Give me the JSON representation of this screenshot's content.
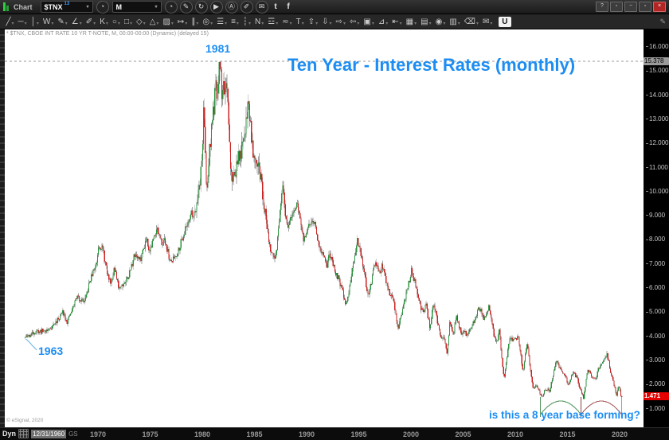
{
  "window": {
    "controls": [
      {
        "name": "help",
        "glyph": "?"
      },
      {
        "name": "pin",
        "glyph": "▫"
      },
      {
        "name": "minimize",
        "glyph": "−"
      },
      {
        "name": "restore",
        "glyph": "▫"
      },
      {
        "name": "close",
        "glyph": "×"
      }
    ]
  },
  "toolbar": {
    "app_label": "Chart",
    "symbol": {
      "value": "$TNX",
      "badge": "13"
    },
    "interval": {
      "value": "M"
    },
    "right_icons": [
      {
        "name": "time-interval-icon",
        "glyph": "◔",
        "style": "round"
      },
      {
        "name": "draw-pencil-icon",
        "glyph": "✎",
        "style": "round"
      },
      {
        "name": "refresh-icon",
        "glyph": "↻",
        "style": "round"
      },
      {
        "name": "play-icon",
        "glyph": "▶",
        "style": "round"
      },
      {
        "name": "auto-icon",
        "glyph": "Ⓐ",
        "style": "round"
      },
      {
        "name": "marker-icon",
        "glyph": "✐",
        "style": "round"
      },
      {
        "name": "comment-icon",
        "glyph": "✉",
        "style": "round"
      },
      {
        "name": "twitter-icon",
        "glyph": "t",
        "style": "flat"
      },
      {
        "name": "facebook-icon",
        "glyph": "f",
        "style": "flat"
      }
    ]
  },
  "drawing_toolbar": {
    "logo": "U",
    "panel_edit_glyph": "✎",
    "dropdown_glyph": "▾",
    "tools": [
      {
        "name": "trendline",
        "glyph": "╱"
      },
      {
        "name": "horizontal-line",
        "glyph": "─"
      },
      {
        "name": "vertical-line",
        "glyph": "│"
      },
      {
        "name": "zigzag",
        "glyph": "W"
      },
      {
        "name": "pencil",
        "glyph": "✎"
      },
      {
        "name": "angle",
        "glyph": "∠"
      },
      {
        "name": "marker",
        "glyph": "✐"
      },
      {
        "name": "gann-fan",
        "glyph": "K"
      },
      {
        "name": "ellipse",
        "glyph": "○"
      },
      {
        "name": "rectangle",
        "glyph": "□"
      },
      {
        "name": "polygon",
        "glyph": "◇"
      },
      {
        "name": "triangle",
        "glyph": "△"
      },
      {
        "name": "hatch-brush",
        "glyph": "▨"
      },
      {
        "name": "extension-line",
        "glyph": "↦"
      },
      {
        "name": "parallel-channel",
        "glyph": "∥"
      },
      {
        "name": "fib-circles",
        "glyph": "◎"
      },
      {
        "name": "fib-retracement",
        "glyph": "☰"
      },
      {
        "name": "fib-projection",
        "glyph": "≡"
      },
      {
        "name": "time-zones",
        "glyph": "┆"
      },
      {
        "name": "elliott-wave",
        "glyph": "N"
      },
      {
        "name": "price-levels",
        "glyph": "☲"
      },
      {
        "name": "strike-line",
        "glyph": "≂"
      },
      {
        "name": "text",
        "glyph": "T"
      },
      {
        "name": "arrow-up",
        "glyph": "⇧"
      },
      {
        "name": "arrow-down",
        "glyph": "⇩"
      },
      {
        "name": "arrow-right",
        "glyph": "⇨"
      },
      {
        "name": "arrow-left",
        "glyph": "⇦"
      },
      {
        "name": "callout",
        "glyph": "▣"
      },
      {
        "name": "measure",
        "glyph": "⊿"
      },
      {
        "name": "regression",
        "glyph": "⇤"
      },
      {
        "name": "grid",
        "glyph": "▦"
      },
      {
        "name": "ohlc-table",
        "glyph": "▤"
      },
      {
        "name": "bullseye",
        "glyph": "◉"
      },
      {
        "name": "panel",
        "glyph": "▥"
      },
      {
        "name": "eraser",
        "glyph": "⌫"
      },
      {
        "name": "note",
        "glyph": "✉"
      }
    ]
  },
  "chart": {
    "info_line": "* $TNX, CBOE INT RATE 10 YR T-NOTE, M, 00:00-00:00 (Dynamic) (delayed 15)",
    "watermark": "© eSignal, 2020",
    "annotations": {
      "peak_year": "1981",
      "start_year": "1963",
      "title": "Ten Year - Interest Rates (monthly)",
      "question": "is this a 8 year base forming?"
    },
    "status_bar": {
      "mode": "Dyn",
      "start_date": "12/31/1960",
      "suffix": "GS"
    }
  },
  "colors": {
    "candle_up": "#2c9440",
    "candle_down": "#cc2222",
    "wick": "#a2a2a2",
    "annotation_blue": "#1c8df2",
    "pointer_blue": "#8bc4f0",
    "high_line": "#999999",
    "high_label_bg": "#9a9a9a",
    "last_label_bg": "#e60000",
    "axis_bg": "#000000",
    "chart_bg": "#ffffff"
  },
  "chart_data": {
    "type": "candlestick",
    "symbol": "$TNX",
    "description": "CBOE INT RATE 10 YR T-NOTE",
    "interval": "Monthly",
    "title": "Ten Year - Interest Rates (monthly)",
    "ylim": [
      0.8,
      16.6
    ],
    "x_range_years": [
      1963.0,
      2020.2
    ],
    "grid": false,
    "y_ticks": [
      {
        "value": 16,
        "label": "16.000"
      },
      {
        "value": 15,
        "label": "15.000"
      },
      {
        "value": 14,
        "label": "14.000"
      },
      {
        "value": 13,
        "label": "13.000"
      },
      {
        "value": 12,
        "label": "12.000"
      },
      {
        "value": 11,
        "label": "11.000"
      },
      {
        "value": 10,
        "label": "10.000"
      },
      {
        "value": 9,
        "label": "9.000"
      },
      {
        "value": 8,
        "label": "8.000"
      },
      {
        "value": 7,
        "label": "7.000"
      },
      {
        "value": 6,
        "label": "6.000"
      },
      {
        "value": 5,
        "label": "5.000"
      },
      {
        "value": 4,
        "label": "4.000"
      },
      {
        "value": 3,
        "label": "3.000"
      },
      {
        "value": 2,
        "label": "2.000"
      },
      {
        "value": 1,
        "label": "1.000"
      }
    ],
    "x_ticks": [
      {
        "value": 1970,
        "label": "1970"
      },
      {
        "value": 1975,
        "label": "1975"
      },
      {
        "value": 1980,
        "label": "1980"
      },
      {
        "value": 1985,
        "label": "1985"
      },
      {
        "value": 1990,
        "label": "1990"
      },
      {
        "value": 1995,
        "label": "1995"
      },
      {
        "value": 2000,
        "label": "2000"
      },
      {
        "value": 2005,
        "label": "2005"
      },
      {
        "value": 2010,
        "label": "2010"
      },
      {
        "value": 2015,
        "label": "2015"
      },
      {
        "value": 2020,
        "label": "2020"
      }
    ],
    "high_marker": {
      "value": 15.378,
      "label": "15.378"
    },
    "last_trade": {
      "value": 1.471,
      "label": "1.471"
    },
    "base_arcs": [
      {
        "from_year": 2012.4,
        "to_year": 2016.3,
        "color": "#55985f"
      },
      {
        "from_year": 2016.3,
        "to_year": 2020.2,
        "color": "#a85c5c"
      }
    ],
    "base_arc_markers": [
      {
        "year": 2012.4,
        "color": "#55985f"
      },
      {
        "year": 2016.3,
        "color": "#8a4444"
      },
      {
        "year": 2020.2,
        "color": "#8fa0b8"
      }
    ],
    "series_path": [
      [
        1963.0,
        3.9
      ],
      [
        1963.5,
        4.0
      ],
      [
        1964.0,
        4.15
      ],
      [
        1964.6,
        4.18
      ],
      [
        1965.2,
        4.21
      ],
      [
        1965.8,
        4.45
      ],
      [
        1966.2,
        4.65
      ],
      [
        1966.7,
        5.0
      ],
      [
        1967.1,
        4.55
      ],
      [
        1967.6,
        5.1
      ],
      [
        1968.0,
        5.6
      ],
      [
        1968.4,
        5.5
      ],
      [
        1968.8,
        5.4
      ],
      [
        1969.3,
        6.3
      ],
      [
        1969.9,
        7.0
      ],
      [
        1970.1,
        7.8
      ],
      [
        1970.5,
        7.6
      ],
      [
        1970.95,
        6.5
      ],
      [
        1971.3,
        6.2
      ],
      [
        1971.6,
        6.8
      ],
      [
        1972.0,
        6.0
      ],
      [
        1972.6,
        6.2
      ],
      [
        1973.0,
        6.5
      ],
      [
        1973.6,
        7.4
      ],
      [
        1974.1,
        7.1
      ],
      [
        1974.7,
        8.1
      ],
      [
        1975.0,
        7.5
      ],
      [
        1975.7,
        8.5
      ],
      [
        1976.0,
        7.9
      ],
      [
        1976.5,
        7.9
      ],
      [
        1977.0,
        7.0
      ],
      [
        1977.6,
        7.4
      ],
      [
        1978.1,
        8.0
      ],
      [
        1978.9,
        9.0
      ],
      [
        1979.3,
        9.1
      ],
      [
        1979.85,
        10.5
      ],
      [
        1980.05,
        11.5
      ],
      [
        1980.17,
        13.6
      ],
      [
        1980.45,
        9.8
      ],
      [
        1980.75,
        11.7
      ],
      [
        1980.95,
        12.8
      ],
      [
        1981.1,
        13.2
      ],
      [
        1981.35,
        14.3
      ],
      [
        1981.5,
        13.8
      ],
      [
        1981.72,
        15.3
      ],
      [
        1981.85,
        14.8
      ],
      [
        1981.95,
        13.8
      ],
      [
        1982.1,
        14.5
      ],
      [
        1982.45,
        13.8
      ],
      [
        1982.8,
        10.7
      ],
      [
        1983.0,
        10.5
      ],
      [
        1983.5,
        11.3
      ],
      [
        1984.0,
        11.9
      ],
      [
        1984.45,
        13.8
      ],
      [
        1984.9,
        11.7
      ],
      [
        1985.2,
        11.5
      ],
      [
        1985.7,
        10.4
      ],
      [
        1986.05,
        9.2
      ],
      [
        1986.65,
        7.3
      ],
      [
        1987.05,
        7.2
      ],
      [
        1987.75,
        10.1
      ],
      [
        1988.05,
        8.8
      ],
      [
        1988.35,
        8.5
      ],
      [
        1988.75,
        9.2
      ],
      [
        1989.2,
        9.4
      ],
      [
        1989.75,
        7.9
      ],
      [
        1990.05,
        8.3
      ],
      [
        1990.7,
        8.9
      ],
      [
        1991.05,
        8.1
      ],
      [
        1991.95,
        6.8
      ],
      [
        1992.25,
        7.4
      ],
      [
        1992.8,
        6.6
      ],
      [
        1993.1,
        6.4
      ],
      [
        1993.8,
        5.3
      ],
      [
        1994.1,
        5.8
      ],
      [
        1994.9,
        8.0
      ],
      [
        1995.2,
        7.4
      ],
      [
        1995.95,
        5.65
      ],
      [
        1996.3,
        6.3
      ],
      [
        1996.55,
        7.0
      ],
      [
        1997.05,
        6.6
      ],
      [
        1997.3,
        6.9
      ],
      [
        1997.95,
        5.8
      ],
      [
        1998.3,
        5.6
      ],
      [
        1998.8,
        4.3
      ],
      [
        1999.1,
        4.8
      ],
      [
        1999.9,
        6.3
      ],
      [
        2000.1,
        6.7
      ],
      [
        2000.55,
        6.0
      ],
      [
        2000.95,
        5.2
      ],
      [
        2001.25,
        4.9
      ],
      [
        2001.45,
        5.4
      ],
      [
        2001.85,
        4.3
      ],
      [
        2002.2,
        5.3
      ],
      [
        2002.95,
        3.9
      ],
      [
        2003.2,
        3.9
      ],
      [
        2003.5,
        3.2
      ],
      [
        2003.75,
        4.5
      ],
      [
        2004.1,
        4.0
      ],
      [
        2004.4,
        4.8
      ],
      [
        2004.85,
        4.1
      ],
      [
        2005.1,
        4.2
      ],
      [
        2005.45,
        4.0
      ],
      [
        2005.95,
        4.5
      ],
      [
        2006.15,
        4.6
      ],
      [
        2006.55,
        5.2
      ],
      [
        2007.05,
        4.7
      ],
      [
        2007.5,
        5.2
      ],
      [
        2007.95,
        4.1
      ],
      [
        2008.2,
        3.6
      ],
      [
        2008.5,
        4.2
      ],
      [
        2008.97,
        2.2
      ],
      [
        2009.15,
        2.8
      ],
      [
        2009.5,
        3.9
      ],
      [
        2009.95,
        3.8
      ],
      [
        2010.3,
        3.95
      ],
      [
        2010.8,
        2.5
      ],
      [
        2011.15,
        3.7
      ],
      [
        2011.75,
        1.8
      ],
      [
        2012.05,
        2.0
      ],
      [
        2012.6,
        1.45
      ],
      [
        2012.95,
        1.8
      ],
      [
        2013.35,
        1.7
      ],
      [
        2013.95,
        3.0
      ],
      [
        2014.25,
        2.7
      ],
      [
        2014.95,
        2.2
      ],
      [
        2015.1,
        1.9
      ],
      [
        2015.55,
        2.45
      ],
      [
        2015.95,
        2.3
      ],
      [
        2016.2,
        1.85
      ],
      [
        2016.6,
        1.4
      ],
      [
        2016.95,
        2.6
      ],
      [
        2017.3,
        2.35
      ],
      [
        2017.75,
        2.2
      ],
      [
        2018.0,
        2.6
      ],
      [
        2018.85,
        3.2
      ],
      [
        2019.1,
        2.65
      ],
      [
        2019.4,
        2.1
      ],
      [
        2019.75,
        1.55
      ],
      [
        2019.95,
        1.9
      ],
      [
        2020.2,
        1.471
      ]
    ]
  }
}
